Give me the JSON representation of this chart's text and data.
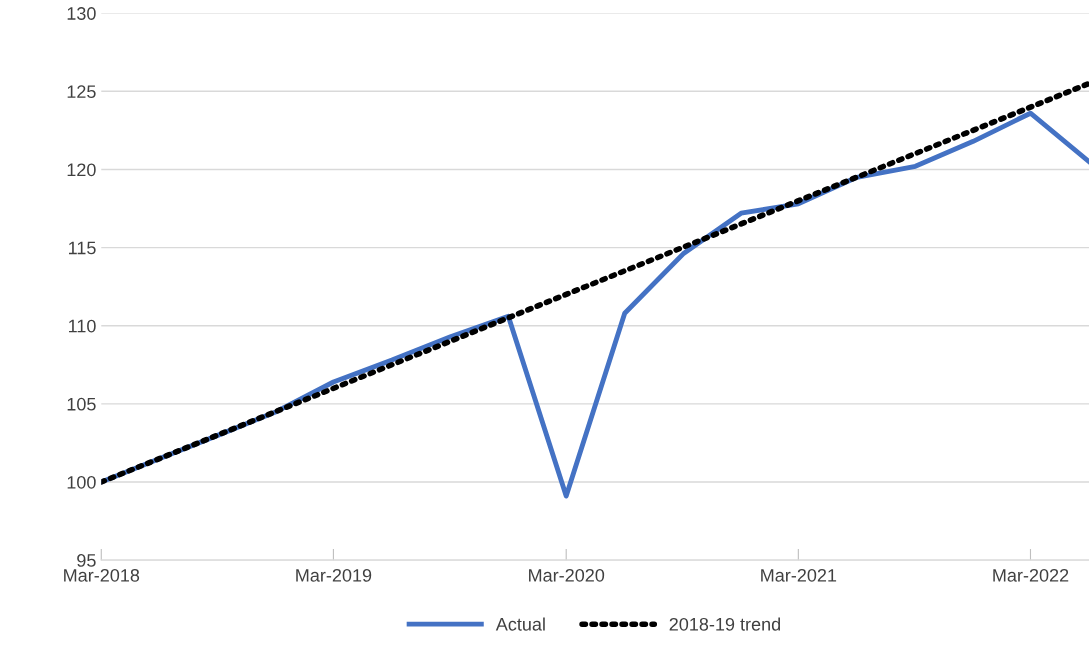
{
  "chart_data": {
    "type": "line",
    "xlim": [
      "2018-03",
      "2022-06"
    ],
    "xticks": [
      {
        "value": "2018-03",
        "label": "Mar-2018"
      },
      {
        "value": "2019-03",
        "label": "Mar-2019"
      },
      {
        "value": "2020-03",
        "label": "Mar-2020"
      },
      {
        "value": "2021-03",
        "label": "Mar-2021"
      },
      {
        "value": "2022-03",
        "label": "Mar-2022"
      }
    ],
    "ylim": [
      95,
      130
    ],
    "yticks": [
      95,
      100,
      105,
      110,
      115,
      120,
      125,
      130
    ],
    "grid": "y",
    "legend": "bottom",
    "marker": "none",
    "series": [
      {
        "name": "Actual",
        "color": "#4472c4",
        "line_style": "solid",
        "x": [
          "2018-03",
          "2018-06",
          "2018-09",
          "2018-12",
          "2019-03",
          "2019-06",
          "2019-09",
          "2019-12",
          "2020-03",
          "2020-06",
          "2020-09",
          "2020-12",
          "2021-03",
          "2021-06",
          "2021-09",
          "2021-12",
          "2022-03",
          "2022-06"
        ],
        "values": [
          100,
          101.5,
          103,
          104.5,
          106.4,
          107.8,
          109.3,
          110.6,
          99.1,
          110.8,
          114.6,
          117.2,
          117.8,
          119.5,
          120.2,
          121.8,
          123.6,
          120.5
        ]
      },
      {
        "name": "2018-19 trend",
        "color": "#000000",
        "line_style": "dotted",
        "x": [
          "2018-03",
          "2022-06"
        ],
        "values": [
          100,
          125.5
        ]
      }
    ]
  }
}
